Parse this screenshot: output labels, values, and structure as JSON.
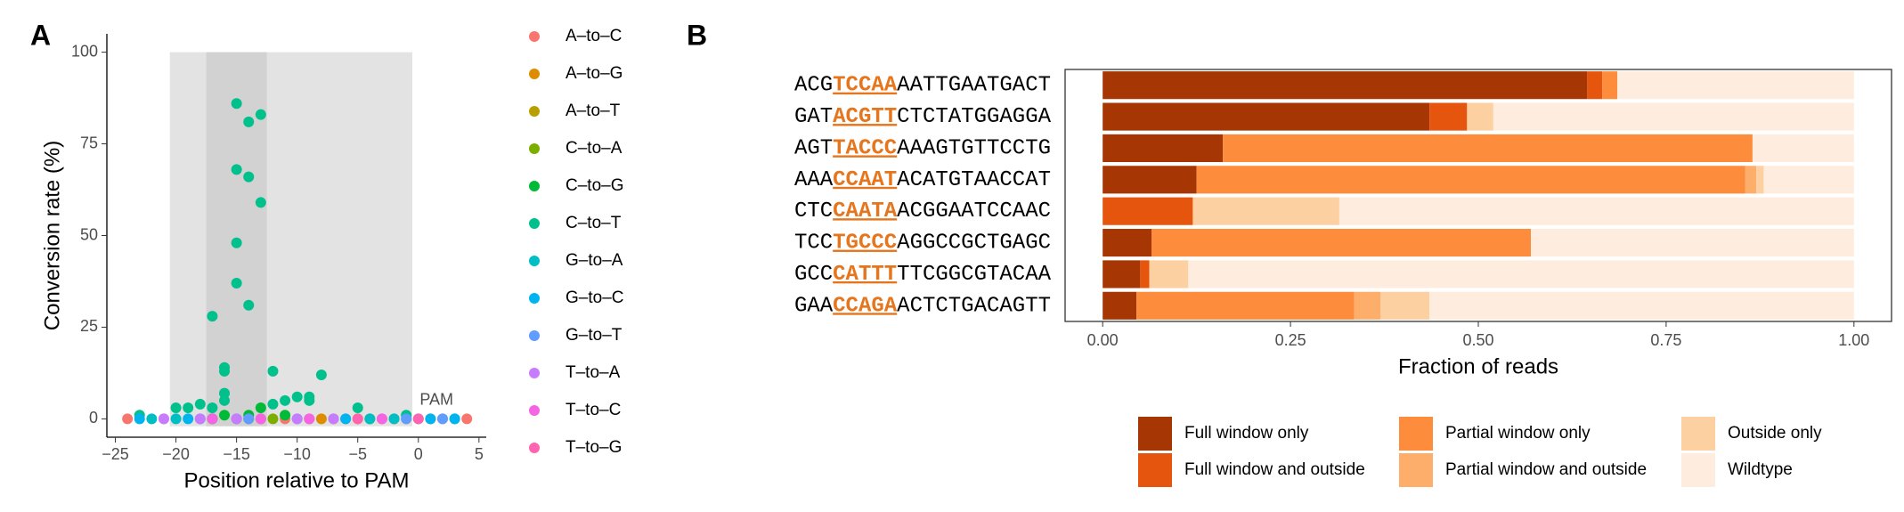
{
  "chart_data": [
    {
      "type": "scatter",
      "panel_label": "A",
      "x_label": "Position relative to PAM",
      "y_label": "Conversion rate (%)",
      "xlim": [
        -25.7,
        5.6
      ],
      "ylim": [
        -5,
        105
      ],
      "xticks": [
        {
          "value": -25,
          "label": "−25"
        },
        {
          "value": -20,
          "label": "−20"
        },
        {
          "value": -15,
          "label": "−15"
        },
        {
          "value": -10,
          "label": "−10"
        },
        {
          "value": -5,
          "label": "−5"
        },
        0,
        5
      ],
      "yticks": [
        0,
        25,
        50,
        75,
        100
      ],
      "grid": false,
      "legend": "right",
      "shaded_regions": [
        {
          "xmin": -20.5,
          "xmax": -0.5,
          "ymin": -2,
          "ymax": 100,
          "color": "#e3e3e3"
        },
        {
          "xmin": -17.5,
          "xmax": -12.5,
          "ymin": -2,
          "ymax": 100,
          "color": "#d2d2d2"
        }
      ],
      "annotations": [
        {
          "text": "PAM",
          "x": 1.5,
          "y": 5
        }
      ],
      "series": [
        {
          "name": "A–to–C",
          "color": "#F8766D",
          "x": [
            -24,
            -21,
            -11,
            -6,
            -3,
            -1,
            1,
            2,
            4
          ],
          "values": [
            0,
            0,
            0,
            0,
            0,
            0,
            0,
            0,
            0
          ]
        },
        {
          "name": "A–to–G",
          "color": "#DE8C00",
          "x": [
            -13,
            -8,
            -2
          ],
          "values": [
            0,
            0,
            0
          ]
        },
        {
          "name": "A–to–T",
          "color": "#B79F00",
          "x": [
            -9,
            -5
          ],
          "values": [
            0,
            0
          ]
        },
        {
          "name": "C–to–A",
          "color": "#7CAE00",
          "x": [
            -17,
            -14,
            -12,
            -7,
            -4
          ],
          "values": [
            0,
            0,
            0,
            0,
            0
          ]
        },
        {
          "name": "C–to–G",
          "color": "#00BA38",
          "x": [
            -17,
            -16,
            -15,
            -14,
            -13,
            -11
          ],
          "values": [
            0,
            1,
            0,
            1,
            3,
            1
          ]
        },
        {
          "name": "C–to–T",
          "color": "#00C08B",
          "x": [
            -23,
            -20,
            -19,
            -18,
            -17,
            -17,
            -16,
            -16,
            -16,
            -16,
            -15,
            -15,
            -15,
            -15,
            -14,
            -14,
            -14,
            -13,
            -13,
            -12,
            -12,
            -11,
            -10,
            -9,
            -9,
            -8,
            -5,
            -1
          ],
          "values": [
            1,
            3,
            3,
            4,
            28,
            3,
            14,
            13,
            7,
            5,
            86,
            68,
            48,
            37,
            81,
            66,
            31,
            83,
            59,
            13,
            4,
            5,
            6,
            6,
            5,
            12,
            3,
            1
          ]
        },
        {
          "name": "G–to–A",
          "color": "#00BFC4",
          "x": [
            -22,
            -20,
            -18,
            -10,
            -4,
            -2,
            0,
            3
          ],
          "values": [
            0,
            0,
            0,
            0,
            0,
            0,
            0,
            0
          ]
        },
        {
          "name": "G–to–C",
          "color": "#00B4F0",
          "x": [
            -23,
            -19,
            -6,
            1,
            3
          ],
          "values": [
            0,
            0,
            0,
            0,
            0
          ]
        },
        {
          "name": "G–to–T",
          "color": "#619CFF",
          "x": [
            -14,
            -1,
            2
          ],
          "values": [
            0,
            0,
            0
          ]
        },
        {
          "name": "T–to–A",
          "color": "#C77CFF",
          "x": [
            -21,
            -18,
            -15,
            -10,
            -7
          ],
          "values": [
            0,
            0,
            0,
            0,
            0
          ]
        },
        {
          "name": "T–to–C",
          "color": "#F564E3",
          "x": [
            -17,
            -13,
            -9,
            -3
          ],
          "values": [
            0,
            0,
            0,
            0
          ]
        },
        {
          "name": "T–to–G",
          "color": "#FF64B0",
          "x": [
            -5,
            0
          ],
          "values": [
            0,
            0
          ]
        }
      ]
    },
    {
      "type": "bar",
      "orientation": "horizontal",
      "stacked": true,
      "panel_label": "B",
      "x_label": "Fraction of reads",
      "legend": "bottom",
      "grid": false,
      "xlim": [
        -0.05,
        1.05
      ],
      "xticks": [
        {
          "value": 0,
          "label": "0.00"
        },
        {
          "value": 0.25,
          "label": "0.25"
        },
        {
          "value": 0.5,
          "label": "0.50"
        },
        {
          "value": 0.75,
          "label": "0.75"
        },
        {
          "value": 1,
          "label": "1.00"
        }
      ],
      "categories": [
        "ACGTCCAAAATTGAATGACT",
        "GATACGTTCTCTATGGAGGA",
        "AGTTACCCAAAGTGTTCCTG",
        "AAACCAATACATGTAACCAT",
        "CTCCAATAACGGAATCCAAC",
        "TCCTGCCCAGGCCGCTGAGC",
        "GCCCATTTTTCGGCGTACAA",
        "GAACCAGAACTCTGACAGTT"
      ],
      "series": [
        {
          "name": "Full window only",
          "color": "#A63603",
          "values": [
            0.645,
            0.435,
            0.16,
            0.125,
            0,
            0.065,
            0.05,
            0.045
          ]
        },
        {
          "name": "Full window and outside",
          "color": "#E6550D",
          "values": [
            0.02,
            0.05,
            0,
            0,
            0.12,
            0,
            0.012,
            0
          ]
        },
        {
          "name": "Partial window only",
          "color": "#FD8D3C",
          "values": [
            0.02,
            0,
            0.705,
            0.73,
            0,
            0.505,
            0,
            0.29
          ]
        },
        {
          "name": "Partial window and outside",
          "color": "#FDAE6B",
          "values": [
            0,
            0,
            0,
            0.015,
            0,
            0,
            0,
            0.035
          ]
        },
        {
          "name": "Outside only",
          "color": "#FDD0A2",
          "values": [
            0,
            0.035,
            0,
            0.01,
            0.195,
            0,
            0.052,
            0.065
          ]
        },
        {
          "name": "Wildtype",
          "color": "#FEEDDE",
          "values": [
            0.315,
            0.48,
            0.135,
            0.12,
            0.685,
            0.43,
            0.886,
            0.565
          ]
        }
      ]
    }
  ]
}
